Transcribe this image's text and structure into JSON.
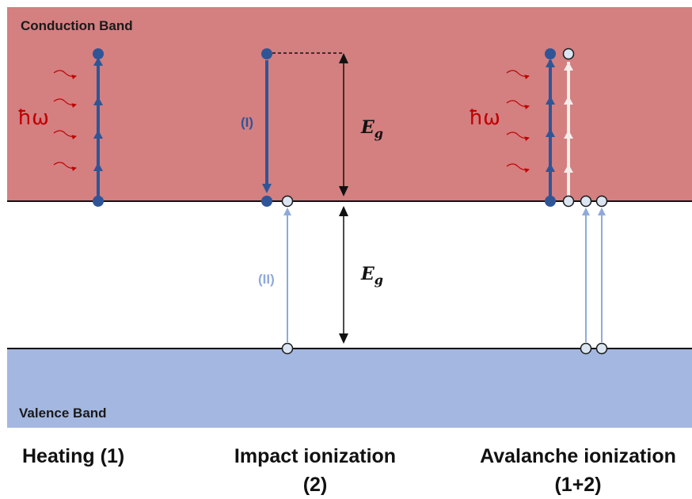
{
  "bands": {
    "conduction_label": "Conduction  Band",
    "valence_label": "Valence Band"
  },
  "panels": {
    "heating": {
      "caption": "Heating (1)",
      "photon_label": "ħω"
    },
    "impact": {
      "caption_line1": "Impact ionization",
      "caption_line2": "(2)",
      "step1_label": "(I)",
      "step2_label": "(II)",
      "gap_label_upper_main": "E",
      "gap_label_upper_sub": "g",
      "gap_label_lower_main": "E",
      "gap_label_lower_sub": "g"
    },
    "avalanche": {
      "caption_line1": "Avalanche ionization",
      "caption_line2": "(1+2)",
      "photon_label": "ħω"
    }
  },
  "colors": {
    "conduction_band": "#d47f80",
    "valence_band": "#a3b7e0",
    "electron": "#2f5597",
    "hole_outline": "#1a1a1a",
    "photon": "#c00000",
    "excitation_arrow": "#8eaadb",
    "secondary_arrow": "#f2eeea"
  }
}
